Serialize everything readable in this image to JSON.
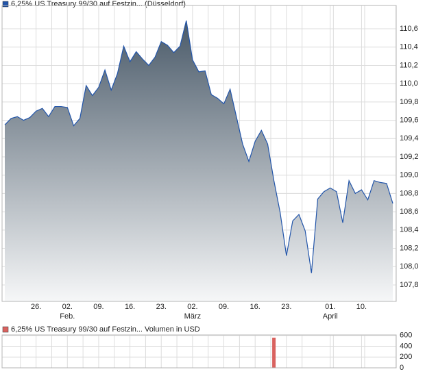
{
  "chart_data": [
    {
      "type": "area",
      "categories": [
        null,
        null,
        null,
        null,
        null,
        "26.",
        null,
        null,
        null,
        null,
        "02.",
        null,
        null,
        null,
        null,
        "09.",
        null,
        null,
        null,
        null,
        "16.",
        null,
        null,
        null,
        null,
        "23.",
        null,
        null,
        null,
        null,
        "02.",
        null,
        null,
        null,
        null,
        "09.",
        null,
        null,
        null,
        null,
        "16.",
        null,
        null,
        null,
        null,
        "23.",
        null,
        null,
        null,
        null,
        null,
        null,
        "01.",
        null,
        null,
        null,
        null,
        "10.",
        null,
        null,
        null,
        null,
        null
      ],
      "months": [
        null,
        null,
        null,
        null,
        null,
        null,
        null,
        null,
        null,
        null,
        "Feb.",
        null,
        null,
        null,
        null,
        null,
        null,
        null,
        null,
        null,
        null,
        null,
        null,
        null,
        null,
        null,
        null,
        null,
        null,
        null,
        "März",
        null,
        null,
        null,
        null,
        null,
        null,
        null,
        null,
        null,
        null,
        null,
        null,
        null,
        null,
        null,
        null,
        null,
        null,
        null,
        null,
        null,
        "April",
        null,
        null,
        null,
        null,
        null,
        null,
        null,
        null,
        null,
        null
      ],
      "series": [
        {
          "name": "6,25% US Treasury 99/30 auf Festzin... (Düsseldorf)",
          "color": "#2255aa",
          "values": [
            109.55,
            109.62,
            109.64,
            109.6,
            109.63,
            109.7,
            109.73,
            109.64,
            109.75,
            109.75,
            109.74,
            109.54,
            109.62,
            109.98,
            109.87,
            109.96,
            110.15,
            109.93,
            110.11,
            110.41,
            110.24,
            110.35,
            110.27,
            110.2,
            110.29,
            110.46,
            110.42,
            110.34,
            110.41,
            110.69,
            110.26,
            110.13,
            110.14,
            109.88,
            109.84,
            109.78,
            109.94,
            109.64,
            109.34,
            109.15,
            109.37,
            109.49,
            109.34,
            108.94,
            108.59,
            108.12,
            108.5,
            108.57,
            108.39,
            107.93,
            108.74,
            108.82,
            108.86,
            108.82,
            108.48,
            108.94,
            108.8,
            108.84,
            108.73,
            108.94,
            108.92,
            108.91,
            108.69
          ]
        }
      ],
      "ylim": [
        107.62,
        110.855
      ],
      "yticks": [
        {
          "value": 107.8,
          "label": "107,8"
        },
        {
          "value": 108.0,
          "label": "108,0"
        },
        {
          "value": 108.2,
          "label": "108,2"
        },
        {
          "value": 108.4,
          "label": "108,4"
        },
        {
          "value": 108.6,
          "label": "108,6"
        },
        {
          "value": 108.8,
          "label": "108,8"
        },
        {
          "value": 109.0,
          "label": "109,0"
        },
        {
          "value": 109.2,
          "label": "109,2"
        },
        {
          "value": 109.4,
          "label": "109,4"
        },
        {
          "value": 109.6,
          "label": "109,6"
        },
        {
          "value": 109.8,
          "label": "109,8"
        },
        {
          "value": 110.0,
          "label": "110,0"
        },
        {
          "value": 110.2,
          "label": "110,2"
        },
        {
          "value": 110.4,
          "label": "110,4"
        },
        {
          "value": 110.6,
          "label": "110,6"
        }
      ],
      "grid": true
    },
    {
      "type": "bar",
      "series": [
        {
          "name": "6,25% US Treasury 99/30 auf Festzin... Volumen in USD",
          "color": "#d9625f",
          "values": [
            null,
            null,
            null,
            null,
            null,
            null,
            null,
            null,
            null,
            null,
            null,
            null,
            null,
            null,
            null,
            null,
            null,
            null,
            null,
            null,
            null,
            null,
            null,
            null,
            null,
            null,
            null,
            null,
            null,
            null,
            null,
            null,
            null,
            null,
            null,
            null,
            null,
            null,
            null,
            null,
            null,
            null,
            null,
            560,
            null,
            null,
            null,
            null,
            null,
            null,
            null,
            null,
            null,
            null,
            null,
            null,
            null,
            null,
            null,
            null,
            null,
            null,
            null
          ]
        }
      ],
      "ylim": [
        0,
        610
      ],
      "yticks": [
        0,
        200,
        400,
        600
      ],
      "grid": true
    }
  ]
}
